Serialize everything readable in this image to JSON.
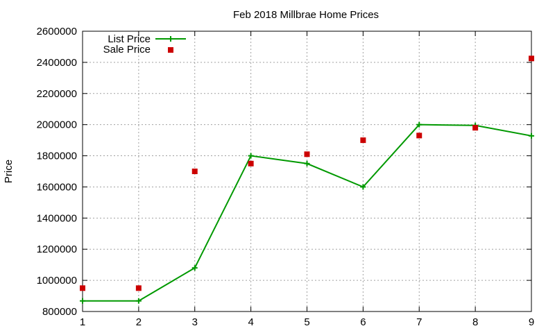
{
  "chart_data": {
    "type": "line",
    "title": "Feb 2018 Millbrae Home Prices",
    "xlabel": "",
    "ylabel": "Price",
    "x": [
      1,
      2,
      3,
      4,
      5,
      6,
      7,
      8,
      9
    ],
    "xlim": [
      1,
      9
    ],
    "ylim": [
      800000,
      2600000
    ],
    "xticks": [
      "1",
      "2",
      "3",
      "4",
      "5",
      "6",
      "7",
      "8",
      "9"
    ],
    "yticks": [
      "800000",
      "1000000",
      "1200000",
      "1400000",
      "1600000",
      "1800000",
      "2000000",
      "2200000",
      "2400000",
      "2600000"
    ],
    "grid": true,
    "legend_position": "top-left",
    "series": [
      {
        "name": "List Price",
        "style": "line-with-plus-markers",
        "color": "#009900",
        "values": [
          868000,
          868000,
          1080000,
          1800000,
          1750000,
          1600000,
          2000000,
          1995000,
          1928000
        ]
      },
      {
        "name": "Sale Price",
        "style": "square-markers",
        "color": "#cc0000",
        "values": [
          950000,
          950000,
          1700000,
          1750000,
          1810000,
          1900000,
          1930000,
          1980000,
          2425000
        ]
      }
    ]
  }
}
